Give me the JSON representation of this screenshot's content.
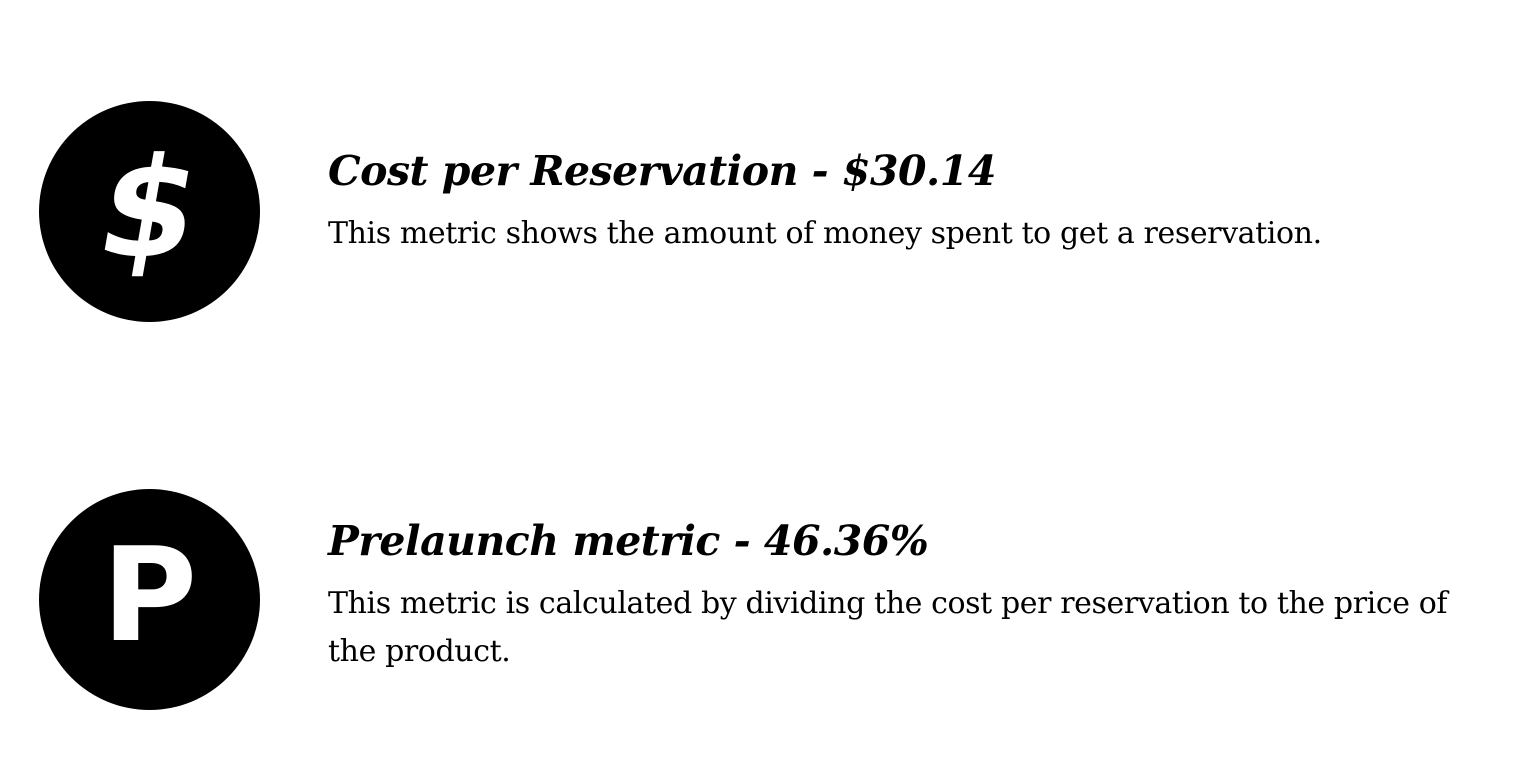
{
  "page": {
    "background_color": "#ffffff",
    "text_color": "#000000",
    "icon_bg_color": "#000000",
    "icon_fg_color": "#ffffff"
  },
  "metrics": [
    {
      "icon": {
        "name": "dollar-sign-icon",
        "glyph": "$"
      },
      "title": "Cost per Reservation - $30.14",
      "value": "$30.14",
      "description": "This metric shows the amount of money spent to get a reservation."
    },
    {
      "icon": {
        "name": "prelaunch-p-icon",
        "glyph": "P"
      },
      "title": "Prelaunch metric - 46.36%",
      "value": "46.36%",
      "description": "This metric is calculated by dividing the cost per reservation to the price of the product."
    }
  ]
}
